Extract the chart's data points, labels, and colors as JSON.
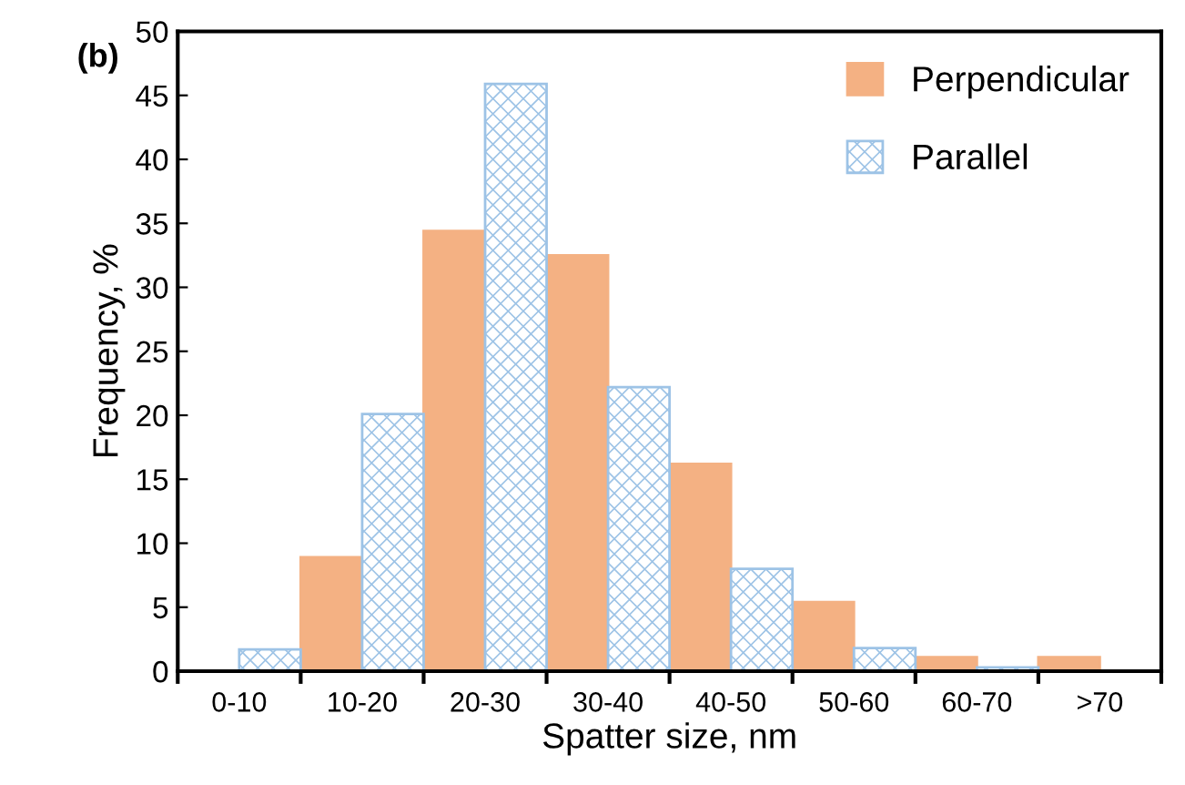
{
  "chart_data": {
    "type": "bar",
    "ylabel": "Frequency, %",
    "xlabel": "Spatter size, nm",
    "annotations": [
      "(b)"
    ],
    "categories": [
      "0-10",
      "10-20",
      "20-30",
      "30-40",
      "40-50",
      "50-60",
      "60-70",
      ">70"
    ],
    "series": [
      {
        "name": "Perpendicular",
        "color": "#f4b183",
        "values": [
          0,
          8.9,
          34.4,
          32.5,
          16.2,
          5.4,
          1.1,
          1.1
        ]
      },
      {
        "name": "Parallel",
        "color": "#9dc3e6",
        "values": [
          1.7,
          20.1,
          45.9,
          22.2,
          8.0,
          1.8,
          0.3,
          0
        ]
      }
    ],
    "ylim": [
      0,
      50
    ],
    "yticks": [
      0,
      5,
      10,
      15,
      20,
      25,
      30,
      35,
      40,
      45,
      50
    ],
    "grid": false,
    "legend": "top right"
  }
}
